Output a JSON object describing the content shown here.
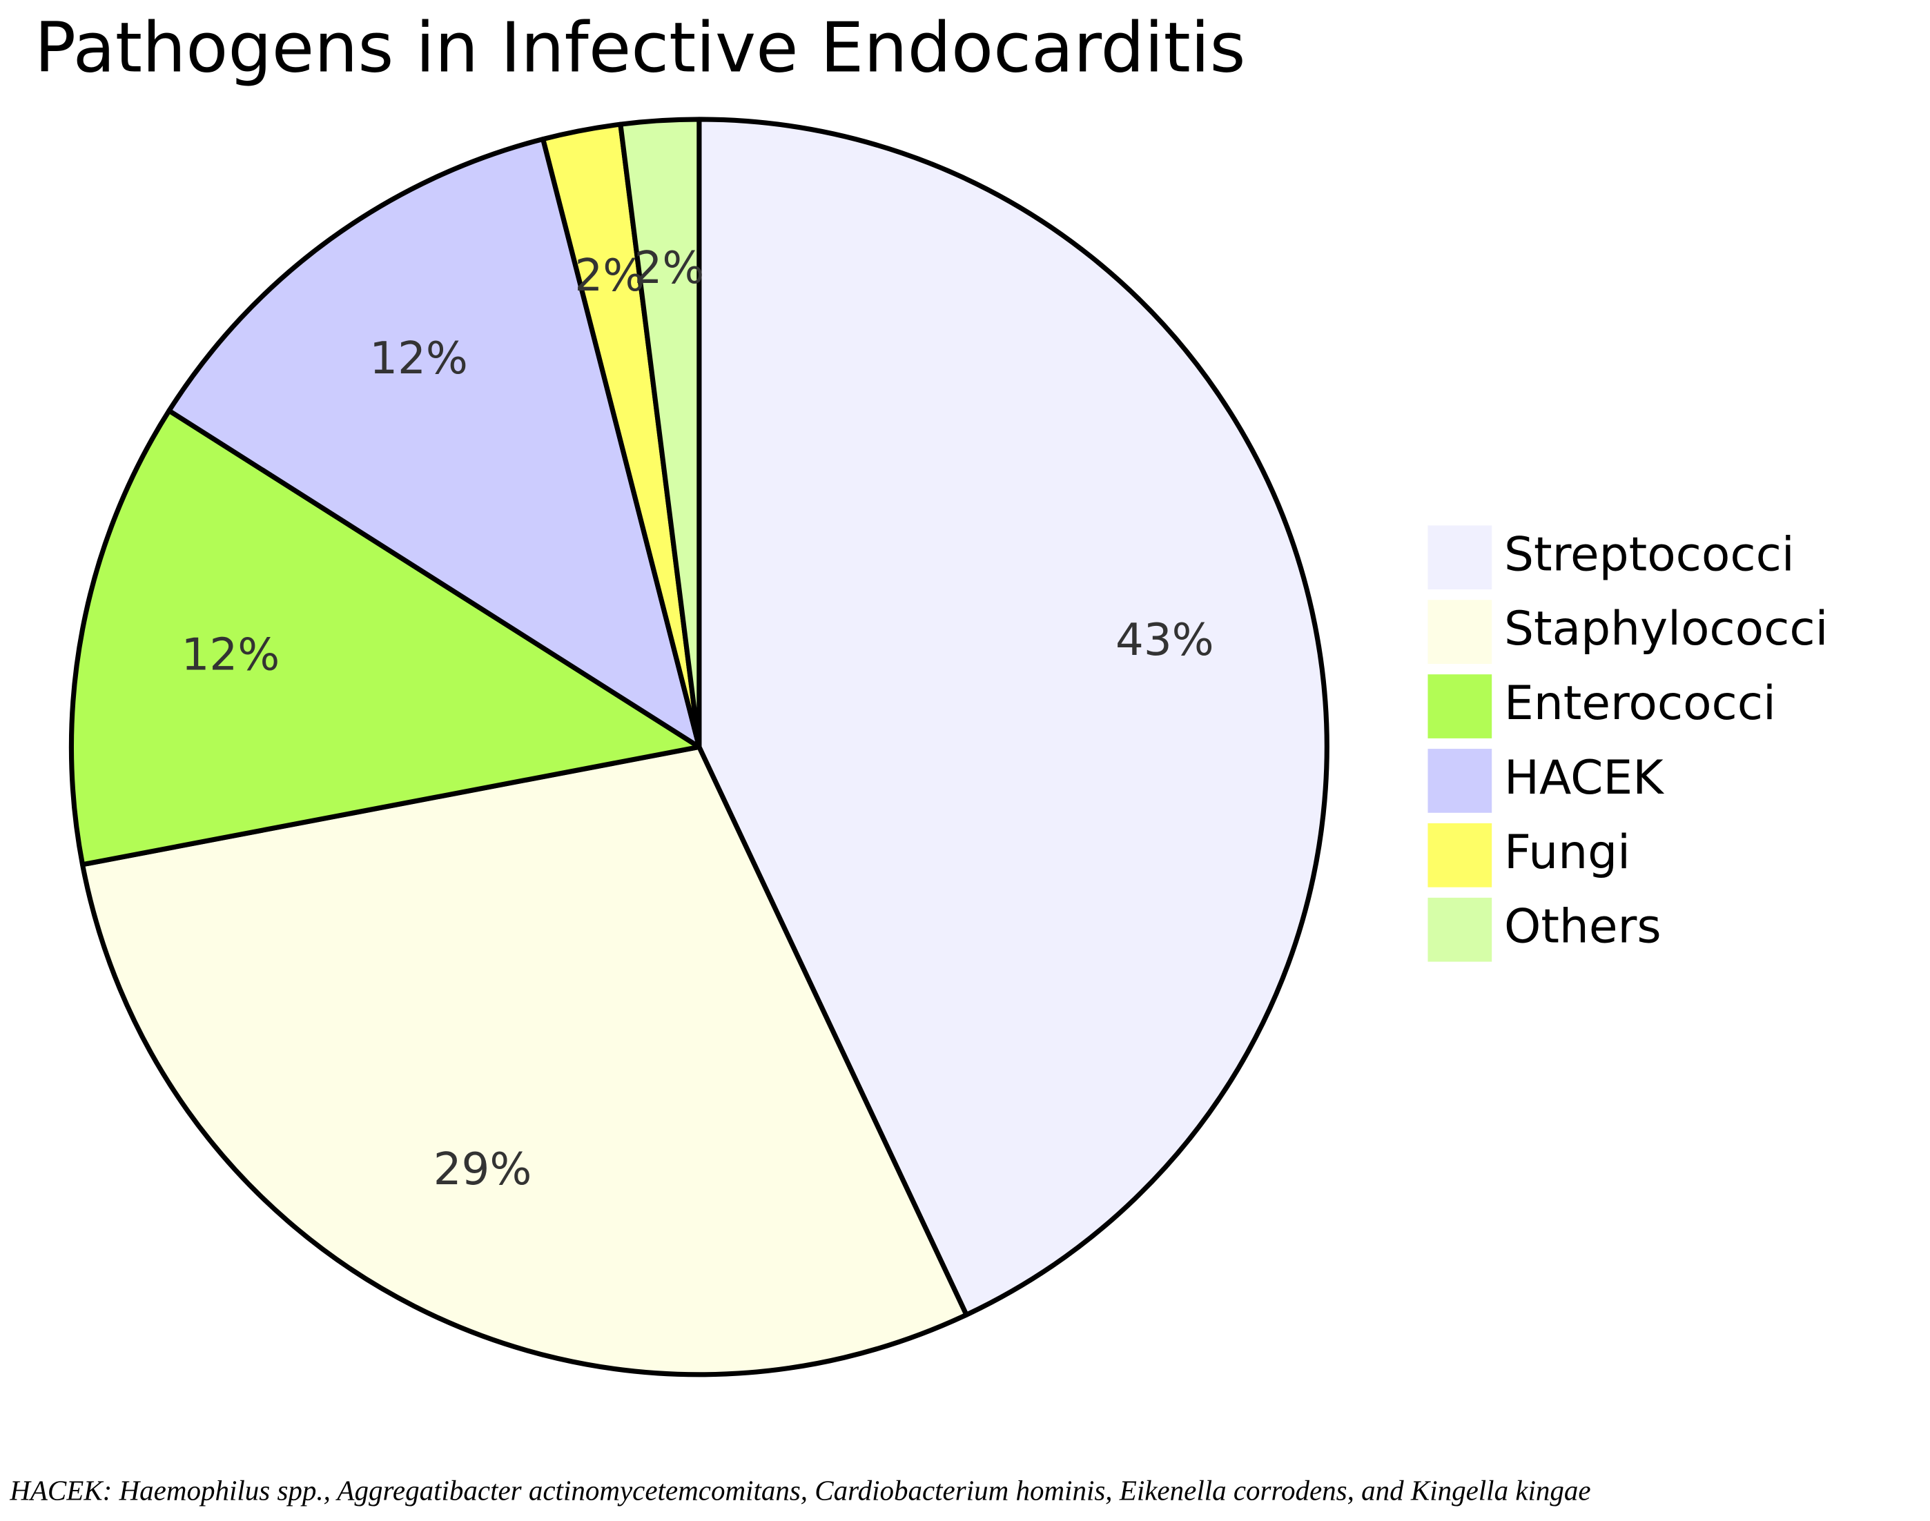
{
  "chart_data": {
    "type": "pie",
    "title": "Pathogens in Infective Endocarditis",
    "categories": [
      "Streptococci",
      "Staphylococci",
      "Enterococci",
      "HACEK",
      "Fungi",
      "Others"
    ],
    "values": [
      43,
      29,
      12,
      12,
      2,
      2
    ],
    "value_labels": [
      "43%",
      "29%",
      "12%",
      "12%",
      "2%",
      "2%"
    ],
    "colors": [
      "#f0f0fe",
      "#fefee6",
      "#b2fc55",
      "#ccccfe",
      "#fefe66",
      "#d6fea8"
    ],
    "legend": "right",
    "footnote": "HACEK: Haemophilus spp., Aggregatibacter actinomycetemcomitans, Cardiobacterium hominis, Eikenella corrodens, and Kingella kingae"
  }
}
